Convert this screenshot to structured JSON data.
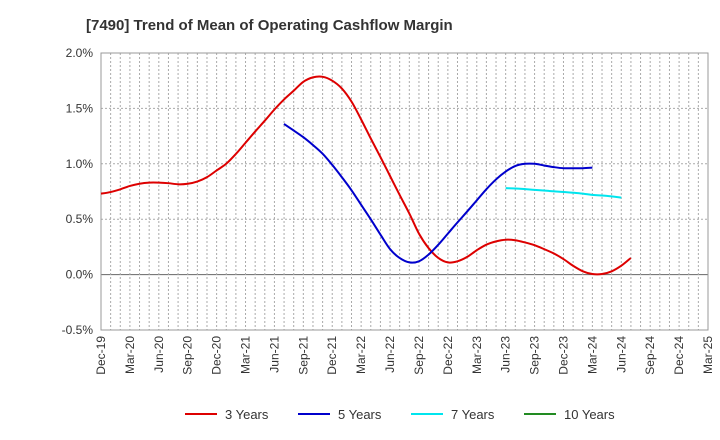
{
  "chart_data": {
    "type": "line",
    "title": "[7490]  Trend of Mean of Operating Cashflow Margin",
    "xlabel": "",
    "ylabel": "",
    "ylim": [
      -0.5,
      2.0
    ],
    "y_ticks": [
      {
        "value": 2.0,
        "label": "2.0%"
      },
      {
        "value": 1.5,
        "label": "1.5%"
      },
      {
        "value": 1.0,
        "label": "1.0%"
      },
      {
        "value": 0.5,
        "label": "0.5%"
      },
      {
        "value": 0.0,
        "label": "0.0%"
      },
      {
        "value": -0.5,
        "label": "-0.5%"
      }
    ],
    "categories": [
      "Dec-19",
      "Mar-20",
      "Jun-20",
      "Sep-20",
      "Dec-20",
      "Mar-21",
      "Jun-21",
      "Sep-21",
      "Dec-21",
      "Mar-22",
      "Jun-22",
      "Sep-22",
      "Dec-22",
      "Mar-23",
      "Jun-23",
      "Sep-23",
      "Dec-23",
      "Mar-24",
      "Jun-24",
      "Sep-24",
      "Dec-24",
      "Mar-25"
    ],
    "grid": true,
    "legend_position": "bottom",
    "series": [
      {
        "name": "3 Years",
        "color": "#dd0000",
        "points": [
          [
            0,
            0.73
          ],
          [
            0.33,
            0.745
          ],
          [
            0.67,
            0.77
          ],
          [
            1,
            0.8
          ],
          [
            1.33,
            0.82
          ],
          [
            1.67,
            0.83
          ],
          [
            2,
            0.83
          ],
          [
            2.33,
            0.825
          ],
          [
            2.67,
            0.815
          ],
          [
            3,
            0.82
          ],
          [
            3.33,
            0.84
          ],
          [
            3.67,
            0.88
          ],
          [
            4,
            0.94
          ],
          [
            4.33,
            1.0
          ],
          [
            4.67,
            1.09
          ],
          [
            5,
            1.19
          ],
          [
            5.33,
            1.29
          ],
          [
            5.67,
            1.39
          ],
          [
            6,
            1.49
          ],
          [
            6.33,
            1.58
          ],
          [
            6.67,
            1.66
          ],
          [
            7,
            1.74
          ],
          [
            7.33,
            1.78
          ],
          [
            7.67,
            1.785
          ],
          [
            8,
            1.75
          ],
          [
            8.33,
            1.68
          ],
          [
            8.67,
            1.56
          ],
          [
            9,
            1.4
          ],
          [
            9.33,
            1.23
          ],
          [
            9.67,
            1.06
          ],
          [
            10,
            0.89
          ],
          [
            10.33,
            0.72
          ],
          [
            10.67,
            0.55
          ],
          [
            11,
            0.37
          ],
          [
            11.33,
            0.24
          ],
          [
            11.67,
            0.15
          ],
          [
            12,
            0.11
          ],
          [
            12.33,
            0.12
          ],
          [
            12.67,
            0.16
          ],
          [
            13,
            0.22
          ],
          [
            13.33,
            0.27
          ],
          [
            13.67,
            0.3
          ],
          [
            14,
            0.315
          ],
          [
            14.33,
            0.31
          ],
          [
            14.67,
            0.29
          ],
          [
            15,
            0.265
          ],
          [
            15.33,
            0.23
          ],
          [
            15.67,
            0.19
          ],
          [
            16,
            0.14
          ],
          [
            16.33,
            0.08
          ],
          [
            16.67,
            0.03
          ],
          [
            17,
            0.005
          ],
          [
            17.33,
            0.005
          ],
          [
            17.67,
            0.03
          ],
          [
            18,
            0.08
          ],
          [
            18.33,
            0.15
          ]
        ]
      },
      {
        "name": "5 Years",
        "color": "#0000cc",
        "points": [
          [
            6.33,
            1.36
          ],
          [
            6.67,
            1.3
          ],
          [
            7,
            1.24
          ],
          [
            7.33,
            1.17
          ],
          [
            7.67,
            1.09
          ],
          [
            8,
            0.99
          ],
          [
            8.33,
            0.88
          ],
          [
            8.67,
            0.76
          ],
          [
            9,
            0.63
          ],
          [
            9.33,
            0.5
          ],
          [
            9.67,
            0.36
          ],
          [
            10,
            0.23
          ],
          [
            10.33,
            0.15
          ],
          [
            10.67,
            0.11
          ],
          [
            11,
            0.12
          ],
          [
            11.33,
            0.18
          ],
          [
            11.67,
            0.27
          ],
          [
            12,
            0.37
          ],
          [
            12.33,
            0.47
          ],
          [
            12.67,
            0.57
          ],
          [
            13,
            0.67
          ],
          [
            13.33,
            0.77
          ],
          [
            13.67,
            0.86
          ],
          [
            14,
            0.93
          ],
          [
            14.33,
            0.98
          ],
          [
            14.67,
            1.0
          ],
          [
            15,
            1.0
          ],
          [
            15.33,
            0.985
          ],
          [
            15.67,
            0.97
          ],
          [
            16,
            0.96
          ],
          [
            16.33,
            0.96
          ],
          [
            16.67,
            0.96
          ],
          [
            17,
            0.965
          ]
        ]
      },
      {
        "name": "7 Years",
        "color": "#00e5ee",
        "points": [
          [
            14,
            0.78
          ],
          [
            14.5,
            0.775
          ],
          [
            15,
            0.765
          ],
          [
            15.5,
            0.755
          ],
          [
            16,
            0.745
          ],
          [
            16.5,
            0.735
          ],
          [
            17,
            0.72
          ],
          [
            17.5,
            0.71
          ],
          [
            18,
            0.695
          ]
        ]
      },
      {
        "name": "10 Years",
        "color": "#228b22",
        "points": []
      }
    ]
  }
}
